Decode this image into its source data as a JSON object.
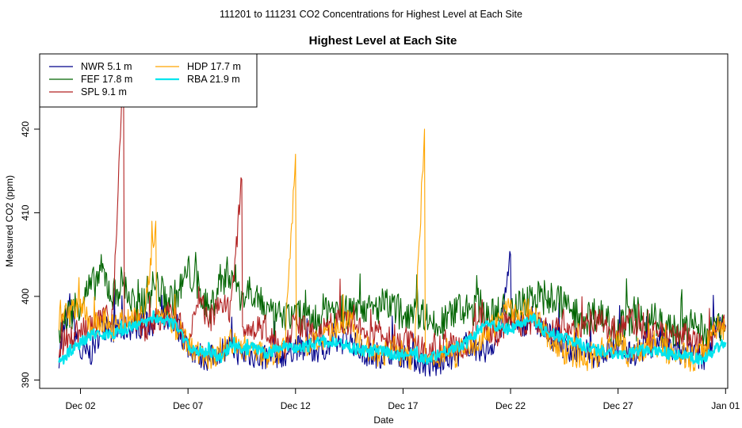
{
  "chart_data": {
    "type": "line",
    "suptitle": "111201  to  111231 CO2 Concentrations for Highest Level at Each Site",
    "title": "Highest Level at Each Site",
    "xlabel": "Date",
    "ylabel": "Measured CO2 (ppm)",
    "xlim": [
      -0.9,
      31.1
    ],
    "ylim": [
      389.0,
      429.0
    ],
    "x_ticks": [
      {
        "day": 1,
        "label": "Dec 02"
      },
      {
        "day": 6,
        "label": "Dec 07"
      },
      {
        "day": 11,
        "label": "Dec 12"
      },
      {
        "day": 16,
        "label": "Dec 17"
      },
      {
        "day": 21,
        "label": "Dec 22"
      },
      {
        "day": 26,
        "label": "Dec 27"
      },
      {
        "day": 31,
        "label": "Jan 01"
      }
    ],
    "y_ticks": [
      390,
      400,
      410,
      420
    ],
    "legend_position": "top-left",
    "series": [
      {
        "name": "NWR",
        "height": "5.1 m",
        "color": "#00008b",
        "x": [
          0,
          0.5,
          1,
          1.5,
          2,
          2.5,
          3,
          3.5,
          4,
          4.5,
          5,
          5.5,
          6,
          6.5,
          7,
          7.5,
          8,
          8.5,
          9,
          9.5,
          10,
          10.5,
          11,
          11.5,
          12,
          12.5,
          13,
          13.5,
          14,
          14.5,
          15,
          15.5,
          16,
          16.5,
          17,
          17.5,
          18,
          18.5,
          19,
          19.5,
          20,
          20.5,
          21,
          21.5,
          22,
          22.5,
          23,
          23.5,
          24,
          24.5,
          25,
          25.5,
          26,
          26.5,
          27,
          27.5,
          28,
          28.5,
          29,
          29.5,
          30,
          30.5,
          31
        ],
        "y": [
          393.0,
          399.0,
          393.0,
          393.2,
          396.5,
          396.0,
          396.0,
          396.5,
          396.5,
          397.0,
          397.5,
          396.5,
          394.0,
          393.0,
          392.5,
          393.5,
          394.0,
          393.0,
          393.0,
          392.5,
          393.0,
          393.0,
          394.0,
          393.5,
          393.5,
          394.0,
          394.5,
          395.0,
          393.5,
          393.0,
          393.0,
          393.5,
          393.0,
          392.5,
          392.0,
          391.5,
          392.5,
          393.0,
          394.5,
          393.0,
          394.0,
          395.0,
          405.0,
          396.5,
          397.5,
          396.0,
          395.0,
          394.0,
          393.5,
          393.0,
          393.0,
          393.5,
          394.0,
          393.0,
          393.5,
          394.0,
          395.0,
          393.5,
          393.0,
          393.0,
          392.5,
          396.0,
          396.5
        ]
      },
      {
        "name": "FEF",
        "height": "17.8 m",
        "color": "#006400",
        "x": [
          0,
          0.5,
          1,
          1.5,
          2,
          2.5,
          3,
          3.5,
          4,
          4.5,
          5,
          5.5,
          6,
          6.5,
          7,
          7.5,
          8,
          8.5,
          9,
          9.5,
          10,
          10.5,
          11,
          11.5,
          12,
          12.5,
          13,
          13.5,
          14,
          14.5,
          15,
          15.5,
          16,
          16.5,
          17,
          17.5,
          18,
          18.5,
          19,
          19.5,
          20,
          20.5,
          21,
          21.5,
          22,
          22.5,
          23,
          23.5,
          24,
          24.5,
          25,
          25.5,
          26,
          26.5,
          27,
          27.5,
          28,
          28.5,
          29,
          29.5,
          30,
          30.5,
          31
        ],
        "y": [
          396.0,
          398.0,
          399.5,
          401.0,
          403.0,
          400.0,
          402.0,
          398.0,
          400.0,
          401.5,
          399.5,
          400.0,
          403.0,
          401.0,
          398.0,
          402.0,
          403.0,
          400.0,
          401.0,
          399.0,
          397.0,
          398.0,
          398.0,
          397.5,
          397.0,
          399.0,
          398.0,
          398.0,
          399.5,
          398.0,
          399.0,
          398.5,
          398.0,
          398.5,
          398.0,
          396.0,
          397.0,
          398.5,
          398.0,
          399.0,
          397.5,
          398.0,
          398.5,
          399.0,
          400.0,
          399.5,
          400.0,
          399.0,
          398.0,
          397.5,
          398.0,
          397.0,
          396.0,
          397.5,
          396.5,
          398.0,
          396.5,
          396.0,
          396.0,
          396.5,
          395.5,
          396.0,
          396.5
        ]
      },
      {
        "name": "SPL",
        "height": "9.1 m",
        "color": "#b22222",
        "x": [
          0,
          0.5,
          1,
          1.5,
          2,
          2.5,
          3,
          3.5,
          4,
          4.5,
          5,
          5.5,
          6,
          6.5,
          7,
          7.5,
          8,
          8.5,
          9,
          9.5,
          10,
          10.5,
          11,
          11.5,
          12,
          12.5,
          13,
          13.5,
          14,
          14.5,
          15,
          15.5,
          16,
          16.5,
          17,
          17.5,
          18,
          18.5,
          19,
          19.5,
          20,
          20.5,
          21,
          21.5,
          22,
          22.5,
          23,
          23.5,
          24,
          24.5,
          25,
          25.5,
          26,
          26.5,
          27,
          27.5,
          28,
          28.5,
          29,
          29.5,
          30,
          30.5,
          31
        ],
        "y": [
          394.0,
          395.0,
          396.0,
          396.5,
          397.0,
          398.0,
          428.0,
          397.0,
          396.0,
          397.0,
          398.0,
          397.0,
          395.0,
          400.0,
          397.0,
          399.0,
          398.0,
          414.0,
          396.0,
          396.5,
          395.0,
          394.0,
          397.0,
          396.0,
          395.0,
          396.5,
          397.0,
          397.0,
          396.0,
          395.0,
          396.0,
          394.5,
          395.0,
          394.0,
          393.5,
          393.5,
          394.5,
          393.5,
          394.0,
          397.5,
          396.0,
          395.5,
          397.5,
          396.5,
          397.0,
          396.5,
          396.0,
          396.5,
          396.0,
          396.5,
          397.0,
          396.5,
          396.0,
          397.5,
          396.0,
          395.0,
          396.0,
          395.5,
          395.5,
          394.5,
          394.0,
          395.5,
          396.5
        ]
      },
      {
        "name": "HDP",
        "height": "17.7 m",
        "color": "#ffa500",
        "x": [
          0,
          0.5,
          1,
          1.5,
          2,
          2.5,
          3,
          3.5,
          4,
          4.5,
          5,
          5.5,
          6,
          6.5,
          7,
          7.5,
          8,
          8.5,
          9,
          9.5,
          10,
          10.5,
          11,
          11.5,
          12,
          12.5,
          13,
          13.5,
          14,
          14.5,
          15,
          15.5,
          16,
          16.5,
          17,
          17.5,
          18,
          18.5,
          19,
          19.5,
          20,
          20.5,
          21,
          21.5,
          22,
          22.5,
          23,
          23.5,
          24,
          24.5,
          25,
          25.5,
          26,
          26.5,
          27,
          27.5,
          28,
          28.5,
          29,
          29.5,
          30,
          30.5,
          31
        ],
        "y": [
          397.0,
          398.0,
          399.0,
          396.0,
          397.0,
          396.0,
          397.0,
          397.5,
          398.0,
          409.0,
          398.0,
          396.0,
          394.5,
          393.0,
          392.5,
          393.5,
          394.5,
          394.0,
          393.5,
          393.0,
          393.0,
          393.5,
          417.0,
          394.0,
          394.5,
          395.0,
          396.0,
          397.5,
          394.0,
          393.5,
          393.0,
          394.0,
          393.0,
          392.5,
          420.0,
          392.5,
          393.5,
          393.0,
          394.0,
          394.5,
          396.0,
          397.5,
          398.5,
          398.0,
          398.5,
          396.0,
          394.0,
          393.5,
          393.0,
          392.5,
          393.0,
          394.0,
          394.5,
          393.0,
          393.5,
          394.5,
          394.0,
          393.0,
          393.0,
          392.5,
          393.5,
          396.5,
          396.0
        ]
      },
      {
        "name": "RBA",
        "height": "21.9 m",
        "color": "#00e5ee",
        "x": [
          0,
          0.5,
          1,
          1.5,
          2,
          2.5,
          3,
          3.5,
          4,
          4.5,
          5,
          5.5,
          6,
          6.5,
          7,
          7.5,
          8,
          8.5,
          9,
          9.5,
          10,
          10.5,
          11,
          11.5,
          12,
          12.5,
          13,
          13.5,
          14,
          14.5,
          15,
          15.5,
          16,
          16.5,
          17,
          17.5,
          18,
          18.5,
          19,
          19.5,
          20,
          20.5,
          21,
          21.5,
          22,
          22.5,
          23,
          23.5,
          24,
          24.5,
          25,
          25.5,
          26,
          26.5,
          27,
          27.5,
          28,
          28.5,
          29,
          29.5,
          30,
          30.5,
          31
        ],
        "y": [
          392.0,
          393.5,
          394.5,
          395.5,
          395.5,
          395.5,
          396.0,
          396.5,
          397.0,
          397.5,
          397.0,
          396.5,
          394.0,
          393.5,
          393.5,
          392.5,
          394.0,
          393.5,
          394.0,
          393.0,
          393.5,
          394.0,
          393.5,
          394.0,
          394.5,
          394.5,
          394.5,
          394.0,
          393.5,
          393.5,
          393.5,
          393.0,
          393.0,
          393.0,
          392.5,
          393.0,
          393.5,
          394.0,
          394.5,
          396.0,
          396.5,
          396.5,
          396.0,
          397.0,
          397.5,
          396.0,
          395.5,
          395.0,
          394.5,
          394.0,
          393.5,
          393.5,
          393.0,
          393.0,
          393.5,
          393.5,
          393.5,
          393.0,
          393.0,
          392.5,
          392.5,
          393.5,
          394.5
        ]
      }
    ]
  }
}
